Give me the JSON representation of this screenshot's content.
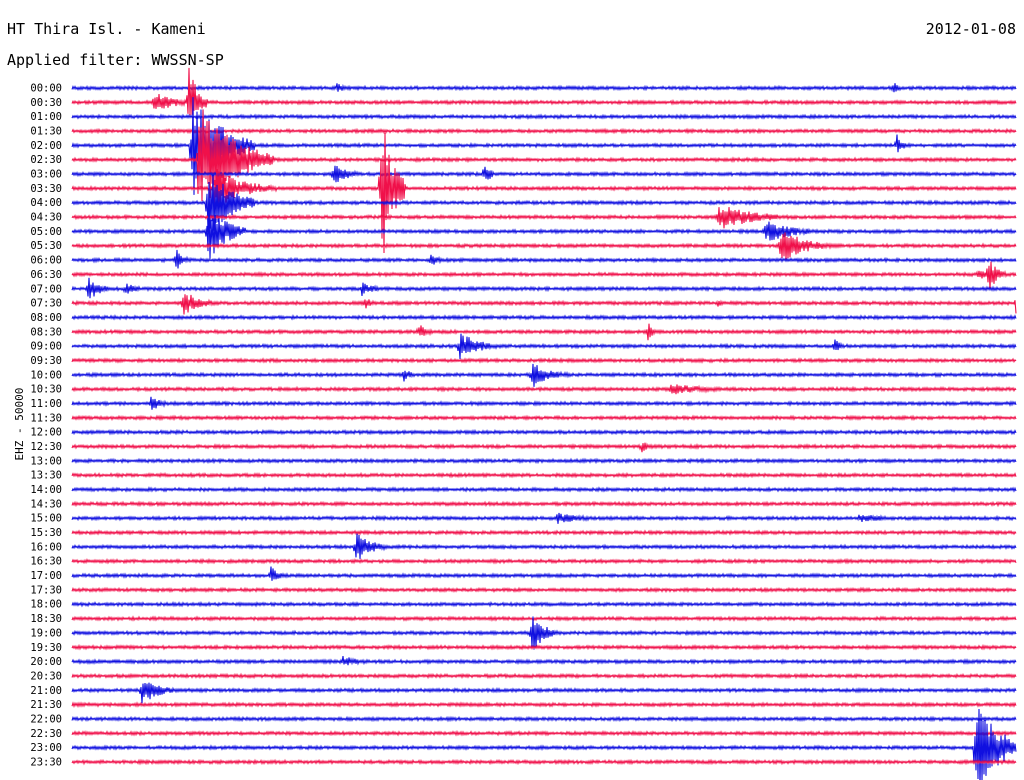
{
  "header": {
    "station": "HT Thira Isl. - Kameni",
    "date": "2012-01-08",
    "filter": "Applied filter: WWSSN-SP"
  },
  "chart_data": {
    "type": "line",
    "title": "HT Thira Isl. - Kameni",
    "ylabel": "EHZ - 50000",
    "xlabel": "",
    "x_unit": "minutes",
    "x_range": [
      0,
      30
    ],
    "colors": [
      "#1010e0",
      "#f0104a"
    ],
    "row_labels": [
      "00:00",
      "00:30",
      "01:00",
      "01:30",
      "02:00",
      "02:30",
      "03:00",
      "03:30",
      "04:00",
      "04:30",
      "05:00",
      "05:30",
      "06:00",
      "06:30",
      "07:00",
      "07:30",
      "08:00",
      "08:30",
      "09:00",
      "09:30",
      "10:00",
      "10:30",
      "11:00",
      "11:30",
      "12:00",
      "12:30",
      "13:00",
      "13:30",
      "14:00",
      "14:30",
      "15:00",
      "15:30",
      "16:00",
      "16:30",
      "17:00",
      "17:30",
      "18:00",
      "18:30",
      "19:00",
      "19:30",
      "20:00",
      "20:30",
      "21:00",
      "21:30",
      "22:00",
      "22:30",
      "23:00",
      "23:30"
    ],
    "events": [
      {
        "row": 0,
        "x": 8.4,
        "amp": 6,
        "dur": 0.6
      },
      {
        "row": 0,
        "x": 26.1,
        "amp": 9,
        "dur": 0.3
      },
      {
        "row": 1,
        "x": 2.6,
        "amp": 12,
        "dur": 1.4
      },
      {
        "row": 1,
        "x": 3.7,
        "amp": 40,
        "dur": 0.6
      },
      {
        "row": 4,
        "x": 3.8,
        "amp": 55,
        "dur": 2.0
      },
      {
        "row": 4,
        "x": 26.2,
        "amp": 12,
        "dur": 0.4
      },
      {
        "row": 5,
        "x": 4.0,
        "amp": 60,
        "dur": 2.4
      },
      {
        "row": 6,
        "x": 8.3,
        "amp": 12,
        "dur": 1.0
      },
      {
        "row": 6,
        "x": 13.1,
        "amp": 20,
        "dur": 0.3
      },
      {
        "row": 7,
        "x": 4.5,
        "amp": 22,
        "dur": 2.0
      },
      {
        "row": 7,
        "x": 9.8,
        "amp": 90,
        "dur": 0.8
      },
      {
        "row": 8,
        "x": 4.3,
        "amp": 40,
        "dur": 1.5
      },
      {
        "row": 9,
        "x": 20.5,
        "amp": 14,
        "dur": 2.5
      },
      {
        "row": 10,
        "x": 4.3,
        "amp": 35,
        "dur": 1.2
      },
      {
        "row": 10,
        "x": 22.0,
        "amp": 12,
        "dur": 2.0
      },
      {
        "row": 11,
        "x": 22.5,
        "amp": 20,
        "dur": 1.6
      },
      {
        "row": 12,
        "x": 3.3,
        "amp": 12,
        "dur": 0.6
      },
      {
        "row": 12,
        "x": 11.4,
        "amp": 10,
        "dur": 0.4
      },
      {
        "row": 13,
        "x": 29.1,
        "amp": 20,
        "dur": 0.6
      },
      {
        "row": 13,
        "x": 28.8,
        "amp": 9,
        "dur": 0.4
      },
      {
        "row": 14,
        "x": 0.5,
        "amp": 14,
        "dur": 0.8
      },
      {
        "row": 14,
        "x": 1.7,
        "amp": 9,
        "dur": 0.6
      },
      {
        "row": 14,
        "x": 9.2,
        "amp": 8,
        "dur": 0.8
      },
      {
        "row": 15,
        "x": 3.5,
        "amp": 14,
        "dur": 1.2
      },
      {
        "row": 15,
        "x": 9.3,
        "amp": 8,
        "dur": 0.4
      },
      {
        "row": 15,
        "x": 20.5,
        "amp": 7,
        "dur": 0.4
      },
      {
        "row": 15,
        "x": 30.0,
        "amp": 12,
        "dur": 0.6
      },
      {
        "row": 17,
        "x": 11.0,
        "amp": 9,
        "dur": 0.6
      },
      {
        "row": 17,
        "x": 18.3,
        "amp": 10,
        "dur": 0.4
      },
      {
        "row": 18,
        "x": 12.3,
        "amp": 16,
        "dur": 1.3
      },
      {
        "row": 18,
        "x": 24.2,
        "amp": 10,
        "dur": 0.4
      },
      {
        "row": 20,
        "x": 10.5,
        "amp": 8,
        "dur": 0.6
      },
      {
        "row": 20,
        "x": 14.6,
        "amp": 14,
        "dur": 1.3
      },
      {
        "row": 21,
        "x": 19.0,
        "amp": 6,
        "dur": 2.8
      },
      {
        "row": 22,
        "x": 2.5,
        "amp": 9,
        "dur": 0.8
      },
      {
        "row": 25,
        "x": 18.1,
        "amp": 8,
        "dur": 0.4
      },
      {
        "row": 30,
        "x": 15.4,
        "amp": 6,
        "dur": 1.8
      },
      {
        "row": 30,
        "x": 25.0,
        "amp": 5,
        "dur": 2.0
      },
      {
        "row": 32,
        "x": 9.0,
        "amp": 18,
        "dur": 1.0
      },
      {
        "row": 34,
        "x": 6.3,
        "amp": 12,
        "dur": 0.5
      },
      {
        "row": 38,
        "x": 14.6,
        "amp": 22,
        "dur": 0.9
      },
      {
        "row": 40,
        "x": 8.6,
        "amp": 6,
        "dur": 1.3
      },
      {
        "row": 42,
        "x": 2.2,
        "amp": 16,
        "dur": 1.1
      },
      {
        "row": 46,
        "x": 28.7,
        "amp": 55,
        "dur": 1.5
      }
    ]
  }
}
